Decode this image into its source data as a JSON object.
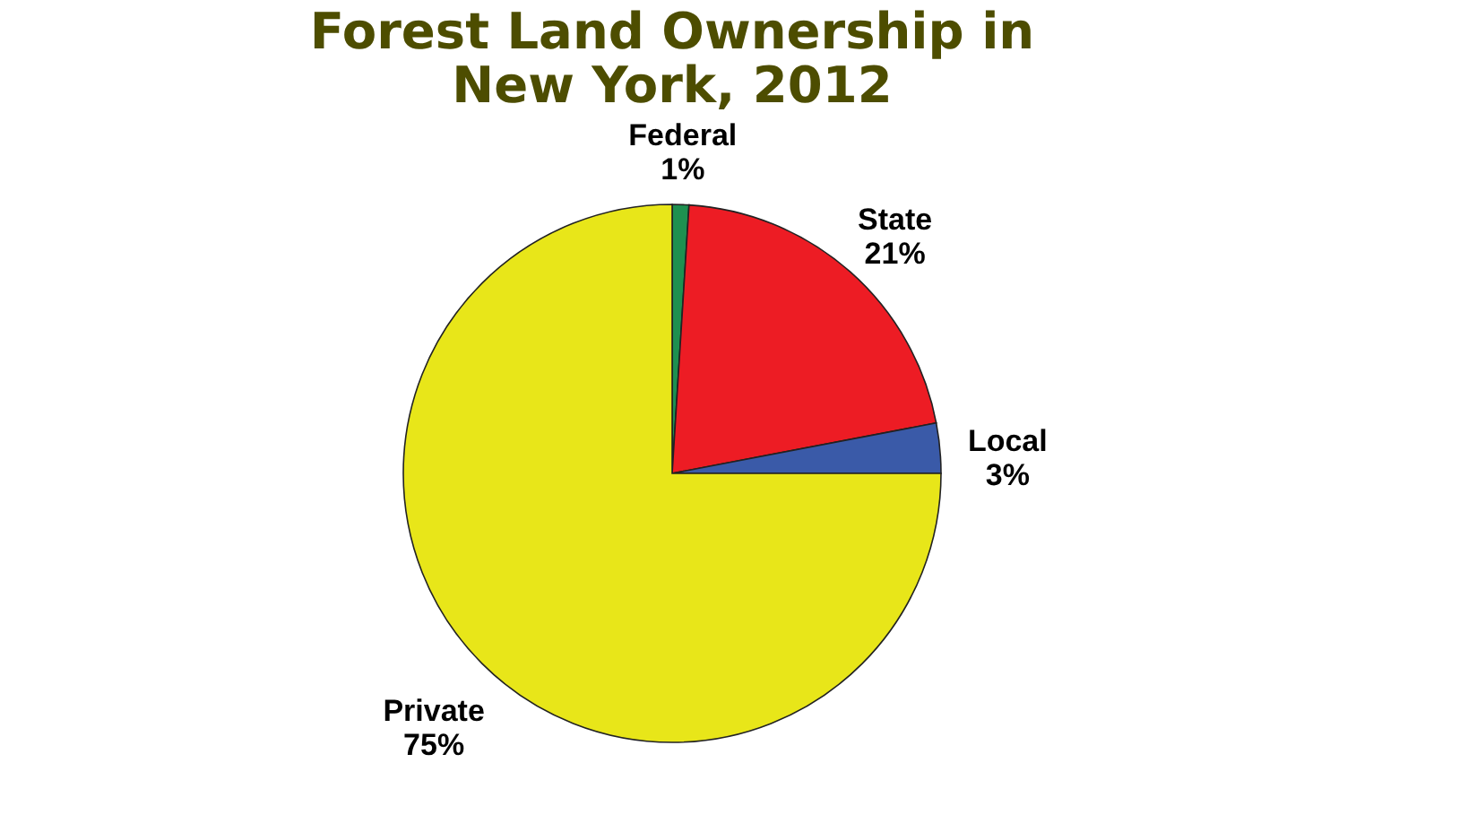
{
  "chart_data": {
    "type": "pie",
    "title": [
      "Forest Land Ownership in",
      "New York, 2012"
    ],
    "categories": [
      "Federal",
      "State",
      "Local",
      "Private"
    ],
    "values": [
      1,
      21,
      3,
      75
    ],
    "colors": [
      "#1e9050",
      "#ed1c24",
      "#3a5aa8",
      "#e8e619"
    ],
    "value_labels": [
      "1%",
      "21%",
      "3%",
      "75%"
    ],
    "legend": false
  }
}
